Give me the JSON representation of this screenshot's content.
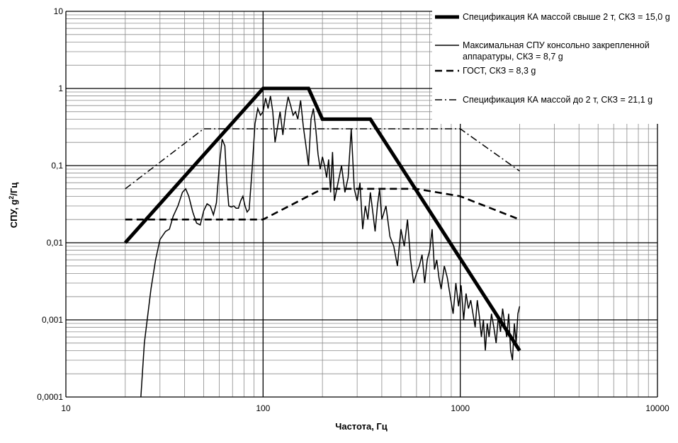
{
  "chart_data": {
    "type": "line",
    "title": "",
    "xlabel": "Частота, Гц",
    "ylabel": "СПУ, g²/Гц",
    "xscale": "log",
    "yscale": "log",
    "xlim": [
      10,
      10000
    ],
    "ylim": [
      0.0001,
      10
    ],
    "grid": true,
    "legend_position": "top-right",
    "x_tick_labels": [
      "10",
      "100",
      "1000",
      "10000"
    ],
    "y_tick_labels": [
      "0,0001",
      "0,001",
      "0,01",
      "0,1",
      "1",
      "10"
    ],
    "series": [
      {
        "name": "Спецификация КА массой свыше 2 т, СКЗ = 15,0 g",
        "style": "thick-solid",
        "x": [
          20,
          100,
          170,
          200,
          350,
          2000
        ],
        "y": [
          0.01,
          1,
          1,
          0.4,
          0.4,
          0.0004
        ]
      },
      {
        "name": "Максимальная СПУ консольно закрепленной аппаратуры, СКЗ = 8,7 g",
        "style": "thin-solid",
        "x": [
          24,
          25,
          27,
          28.5,
          30,
          32,
          33.5,
          35,
          37,
          39,
          40.5,
          42,
          44,
          46,
          48,
          50,
          52,
          54,
          56,
          58,
          60,
          62,
          64,
          65.5,
          67,
          69,
          71,
          73,
          75,
          77,
          79,
          81,
          83,
          85,
          88,
          91,
          94,
          97,
          100,
          103,
          106,
          109,
          112,
          115,
          118,
          122,
          126,
          130,
          134,
          138,
          142,
          146,
          150,
          155,
          160,
          165,
          170,
          175,
          180,
          185,
          190,
          195,
          200,
          205,
          210,
          215,
          220,
          225,
          230,
          240,
          250,
          260,
          270,
          280,
          290,
          300,
          310,
          320,
          330,
          340,
          350,
          360,
          370,
          380,
          390,
          400,
          420,
          440,
          460,
          480,
          500,
          520,
          540,
          560,
          580,
          600,
          620,
          640,
          660,
          680,
          700,
          720,
          740,
          760,
          780,
          800,
          830,
          860,
          890,
          920,
          950,
          980,
          1010,
          1040,
          1070,
          1100,
          1130,
          1160,
          1190,
          1220,
          1250,
          1280,
          1310,
          1340,
          1370,
          1400,
          1440,
          1480,
          1520,
          1560,
          1600,
          1640,
          1680,
          1720,
          1760,
          1800,
          1840,
          1880,
          1920,
          1960,
          2000
        ],
        "y": [
          0.0001,
          0.0005,
          0.0025,
          0.006,
          0.011,
          0.014,
          0.015,
          0.022,
          0.03,
          0.045,
          0.05,
          0.04,
          0.025,
          0.018,
          0.017,
          0.026,
          0.032,
          0.03,
          0.023,
          0.033,
          0.1,
          0.22,
          0.18,
          0.06,
          0.03,
          0.029,
          0.03,
          0.028,
          0.028,
          0.035,
          0.04,
          0.03,
          0.025,
          0.027,
          0.09,
          0.35,
          0.55,
          0.45,
          0.5,
          0.75,
          0.55,
          0.8,
          0.5,
          0.2,
          0.3,
          0.5,
          0.25,
          0.5,
          0.78,
          0.6,
          0.45,
          0.5,
          0.4,
          0.7,
          0.32,
          0.18,
          0.1,
          0.4,
          0.55,
          0.3,
          0.14,
          0.09,
          0.13,
          0.1,
          0.07,
          0.12,
          0.045,
          0.15,
          0.035,
          0.06,
          0.1,
          0.045,
          0.07,
          0.3,
          0.05,
          0.035,
          0.06,
          0.015,
          0.03,
          0.02,
          0.045,
          0.025,
          0.014,
          0.03,
          0.05,
          0.02,
          0.03,
          0.012,
          0.009,
          0.005,
          0.015,
          0.009,
          0.02,
          0.006,
          0.003,
          0.004,
          0.005,
          0.007,
          0.003,
          0.006,
          0.008,
          0.015,
          0.0045,
          0.006,
          0.0035,
          0.0025,
          0.005,
          0.0035,
          0.002,
          0.0012,
          0.003,
          0.0015,
          0.0028,
          0.001,
          0.0022,
          0.0014,
          0.0018,
          0.0012,
          0.0008,
          0.0018,
          0.0011,
          0.0006,
          0.001,
          0.0004,
          0.0009,
          0.0006,
          0.0012,
          0.0008,
          0.0005,
          0.0011,
          0.0007,
          0.0014,
          0.0009,
          0.0006,
          0.0012,
          0.0004,
          0.0003,
          0.0009,
          0.0005,
          0.0012,
          0.0015
        ]
      },
      {
        "name": "ГОСТ, СКЗ = 8,3 g",
        "style": "dashed",
        "x": [
          20,
          100,
          200,
          600,
          1000,
          2000
        ],
        "y": [
          0.02,
          0.02,
          0.05,
          0.05,
          0.04,
          0.02
        ]
      },
      {
        "name": "Спецификация КА массой до 2 т, СКЗ = 21,1 g",
        "style": "dash-dot",
        "x": [
          20,
          50,
          1000,
          2000
        ],
        "y": [
          0.05,
          0.3,
          0.3,
          0.085
        ]
      }
    ]
  }
}
